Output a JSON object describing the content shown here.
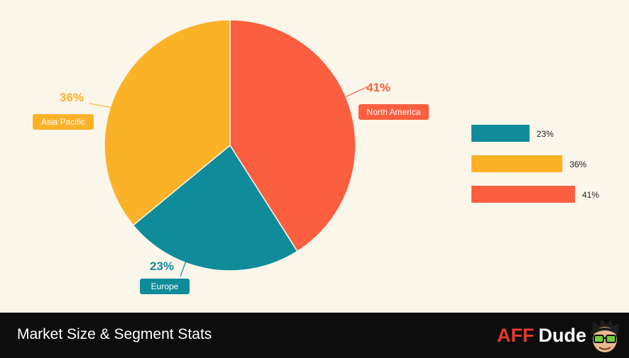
{
  "chart_data": {
    "type": "pie",
    "title": "",
    "slices": [
      {
        "label": "North America",
        "value": 41,
        "display": "41%",
        "color": "#fc5f3f"
      },
      {
        "label": "Europe",
        "value": 23,
        "display": "23%",
        "color": "#0f8b9a"
      },
      {
        "label": "Asia Pacific",
        "value": 36,
        "display": "36%",
        "color": "#fcb227"
      }
    ],
    "legend_bars": [
      {
        "value": 23,
        "display": "23%",
        "color": "#0f8b9a"
      },
      {
        "value": 36,
        "display": "36%",
        "color": "#fcb227"
      },
      {
        "value": 41,
        "display": "41%",
        "color": "#fc5f3f"
      }
    ],
    "bar_max": 41
  },
  "footer": {
    "title": "Market Size & Segment Stats",
    "brand_aff": "AFF",
    "brand_dude": "Dude"
  },
  "icons": {
    "mascot": "aff-dude-mascot-icon"
  },
  "colors": {
    "background": "#fbf6ea",
    "footer": "#0d0d0d",
    "brand_red": "#e23b2e"
  }
}
